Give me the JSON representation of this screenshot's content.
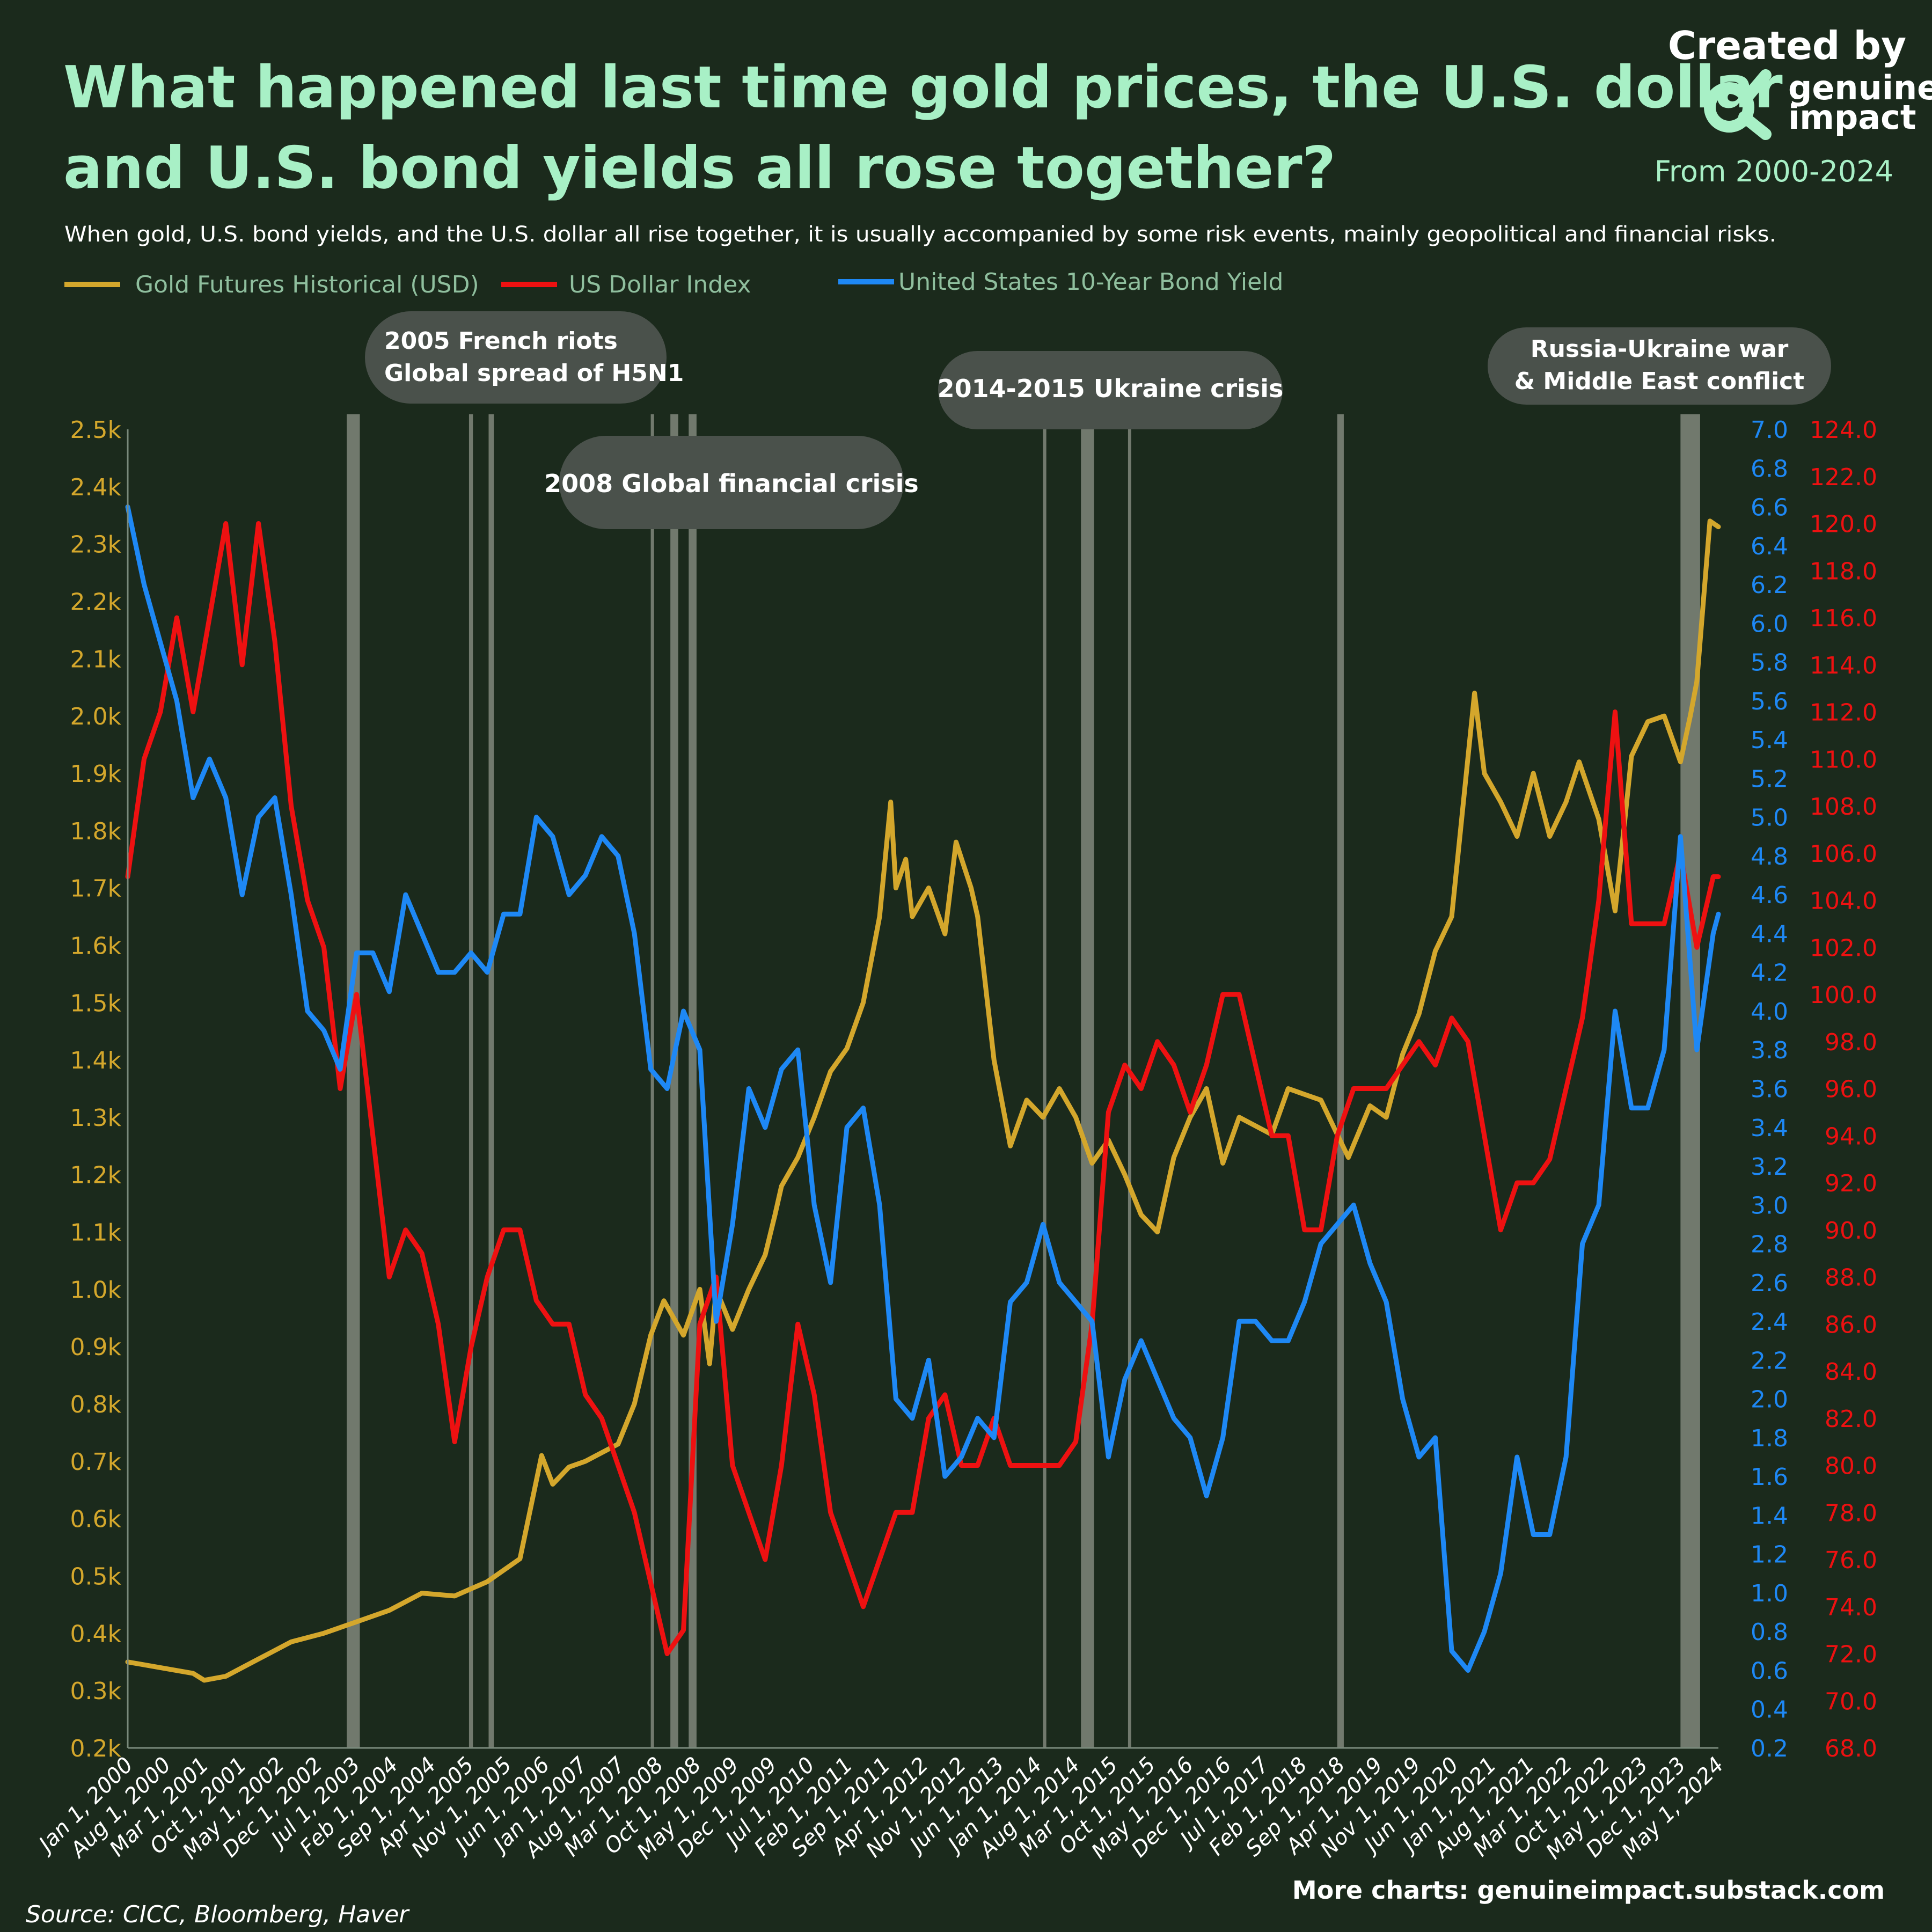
{
  "header": {
    "title_line1": "What happened last time gold prices, the U.S. dollar",
    "title_line2": "and U.S. bond yields all rose together?",
    "subtitle": "When gold, U.S. bond yields, and the U.S. dollar all rise together, it is usually accompanied by some risk events, mainly geopolitical and financial risks.",
    "date_range": "From 2000-2024"
  },
  "brand": {
    "created_by": "Created by",
    "name_line1": "genuine",
    "name_line2": "impact",
    "logo_icon": "genuine-impact-logo"
  },
  "footer": {
    "source": "Source: CICC, Bloomberg, Haver",
    "more_charts": "More charts: genuineimpact.substack.com"
  },
  "colors": {
    "background": "#1b2a1c",
    "title": "#a8f0c6",
    "gold": "#d4a72c",
    "dollar": "#ee1111",
    "yield": "#1e88f5",
    "band": "#b8bab0",
    "bubble": "#4a514b"
  },
  "chart_data": {
    "type": "line",
    "x_ticks": [
      "Jan 1, 2000",
      "Aug 1, 2000",
      "Mar 1, 2001",
      "Oct 1, 2001",
      "May 1, 2002",
      "Dec 1, 2002",
      "Jul 1, 2003",
      "Feb 1, 2004",
      "Sep 1, 2004",
      "Apr 1, 2005",
      "Nov 1, 2005",
      "Jun 1, 2006",
      "Jan 1, 2007",
      "Aug 1, 2007",
      "Mar 1, 2008",
      "Oct 1, 2008",
      "May 1, 2009",
      "Dec 1, 2009",
      "Jul 1, 2010",
      "Feb 1, 2011",
      "Sep 1, 2011",
      "Apr 1, 2012",
      "Nov 1, 2012",
      "Jun 1, 2013",
      "Jan 1, 2014",
      "Aug 1, 2014",
      "Mar 1, 2015",
      "Oct 1, 2015",
      "May 1, 2016",
      "Dec 1, 2016",
      "Jul 1, 2017",
      "Feb 1, 2018",
      "Sep 1, 2018",
      "Apr 1, 2019",
      "Nov 1, 2019",
      "Jun 1, 2020",
      "Jan 1, 2021",
      "Aug 1, 2021",
      "Mar 1, 2022",
      "Oct 1, 2022",
      "May 1, 2023",
      "Dec 1, 2023",
      "May 1, 2024"
    ],
    "x_range": [
      2000.0,
      2024.33
    ],
    "axes": {
      "gold": {
        "min": 200,
        "max": 2500,
        "ticks": [
          "0.2k",
          "0.3k",
          "0.4k",
          "0.5k",
          "0.6k",
          "0.7k",
          "0.8k",
          "0.9k",
          "1.0k",
          "1.1k",
          "1.2k",
          "1.3k",
          "1.4k",
          "1.5k",
          "1.6k",
          "1.7k",
          "1.8k",
          "1.9k",
          "2.0k",
          "2.1k",
          "2.2k",
          "2.3k",
          "2.4k",
          "2.5k"
        ],
        "side": "left"
      },
      "yield": {
        "min": 0.2,
        "max": 7.0,
        "ticks": [
          "0.2",
          "0.4",
          "0.6",
          "0.8",
          "1.0",
          "1.2",
          "1.4",
          "1.6",
          "1.8",
          "2.0",
          "2.2",
          "2.4",
          "2.6",
          "2.8",
          "3.0",
          "3.2",
          "3.4",
          "3.6",
          "3.8",
          "4.0",
          "4.2",
          "4.4",
          "4.6",
          "4.8",
          "5.0",
          "5.2",
          "5.4",
          "5.6",
          "5.8",
          "6.0",
          "6.2",
          "6.4",
          "6.6",
          "6.8",
          "7.0"
        ],
        "side": "right"
      },
      "dollar": {
        "min": 68,
        "max": 124,
        "ticks": [
          "68.0",
          "70.0",
          "72.0",
          "74.0",
          "76.0",
          "78.0",
          "80.0",
          "82.0",
          "84.0",
          "86.0",
          "88.0",
          "90.0",
          "92.0",
          "94.0",
          "96.0",
          "98.0",
          "100.0",
          "102.0",
          "104.0",
          "106.0",
          "108.0",
          "110.0",
          "112.0",
          "114.0",
          "116.0",
          "118.0",
          "120.0",
          "122.0",
          "124.0"
        ],
        "side": "far-right"
      }
    },
    "series": [
      {
        "name": "Gold Futures Historical (USD)",
        "key": "gold",
        "axis": "gold",
        "x": [
          2000.0,
          2000.5,
          2001.0,
          2001.17,
          2001.5,
          2001.75,
          2002.0,
          2002.5,
          2003.0,
          2003.5,
          2004.0,
          2004.5,
          2005.0,
          2005.5,
          2006.0,
          2006.33,
          2006.5,
          2006.75,
          2007.0,
          2007.5,
          2007.75,
          2008.0,
          2008.2,
          2008.5,
          2008.75,
          2008.9,
          2009.0,
          2009.25,
          2009.5,
          2009.75,
          2009.9,
          2010.0,
          2010.25,
          2010.5,
          2010.75,
          2011.0,
          2011.25,
          2011.5,
          2011.67,
          2011.75,
          2011.9,
          2012.0,
          2012.25,
          2012.5,
          2012.67,
          2012.9,
          2013.0,
          2013.25,
          2013.5,
          2013.75,
          2014.0,
          2014.25,
          2014.5,
          2014.75,
          2015.0,
          2015.25,
          2015.5,
          2015.75,
          2016.0,
          2016.25,
          2016.5,
          2016.75,
          2017.0,
          2017.5,
          2017.75,
          2018.0,
          2018.25,
          2018.5,
          2018.67,
          2019.0,
          2019.25,
          2019.5,
          2019.75,
          2020.0,
          2020.25,
          2020.6,
          2020.75,
          2021.0,
          2021.25,
          2021.5,
          2021.75,
          2022.0,
          2022.2,
          2022.5,
          2022.75,
          2022.9,
          2023.0,
          2023.25,
          2023.5,
          2023.75,
          2023.9,
          2024.0,
          2024.2,
          2024.33
        ],
        "y": [
          350,
          340,
          330,
          318,
          325,
          340,
          355,
          385,
          400,
          420,
          440,
          470,
          465,
          490,
          530,
          710,
          660,
          690,
          700,
          730,
          800,
          920,
          980,
          920,
          1000,
          870,
          1000,
          930,
          1000,
          1060,
          1130,
          1180,
          1230,
          1300,
          1380,
          1420,
          1500,
          1650,
          1850,
          1700,
          1750,
          1650,
          1700,
          1620,
          1780,
          1700,
          1650,
          1400,
          1250,
          1330,
          1300,
          1350,
          1300,
          1220,
          1260,
          1200,
          1130,
          1100,
          1230,
          1300,
          1350,
          1220,
          1300,
          1270,
          1350,
          1340,
          1330,
          1270,
          1230,
          1320,
          1300,
          1410,
          1480,
          1590,
          1650,
          2040,
          1900,
          1850,
          1790,
          1900,
          1790,
          1850,
          1920,
          1820,
          1660,
          1820,
          1930,
          1990,
          2000,
          1920,
          2000,
          2060,
          2340,
          2330
        ]
      },
      {
        "name": "US Dollar Index",
        "key": "dollar",
        "axis": "dollar",
        "x": [
          2000.0,
          2000.25,
          2000.5,
          2000.75,
          2001.0,
          2001.25,
          2001.5,
          2001.75,
          2002.0,
          2002.25,
          2002.5,
          2002.75,
          2003.0,
          2003.25,
          2003.5,
          2003.75,
          2004.0,
          2004.25,
          2004.5,
          2004.75,
          2005.0,
          2005.25,
          2005.5,
          2005.75,
          2006.0,
          2006.25,
          2006.5,
          2006.75,
          2007.0,
          2007.25,
          2007.5,
          2007.75,
          2008.0,
          2008.25,
          2008.5,
          2008.75,
          2009.0,
          2009.25,
          2009.5,
          2009.75,
          2010.0,
          2010.25,
          2010.5,
          2010.75,
          2011.0,
          2011.25,
          2011.5,
          2011.75,
          2012.0,
          2012.25,
          2012.5,
          2012.75,
          2013.0,
          2013.25,
          2013.5,
          2013.75,
          2014.0,
          2014.25,
          2014.5,
          2014.75,
          2015.0,
          2015.25,
          2015.5,
          2015.75,
          2016.0,
          2016.25,
          2016.5,
          2016.75,
          2017.0,
          2017.25,
          2017.5,
          2017.75,
          2018.0,
          2018.25,
          2018.5,
          2018.75,
          2019.0,
          2019.25,
          2019.5,
          2019.75,
          2020.0,
          2020.25,
          2020.5,
          2020.75,
          2021.0,
          2021.25,
          2021.5,
          2021.75,
          2022.0,
          2022.25,
          2022.5,
          2022.75,
          2023.0,
          2023.25,
          2023.5,
          2023.75,
          2024.0,
          2024.25,
          2024.33
        ],
        "y": [
          105,
          110,
          112,
          116,
          112,
          116,
          120,
          114,
          120,
          115,
          108,
          104,
          102,
          96,
          100,
          94,
          88,
          90,
          89,
          86,
          81,
          85,
          88,
          90,
          90,
          87,
          86,
          86,
          83,
          82,
          80,
          78,
          75,
          72,
          73,
          86,
          88,
          80,
          78,
          76,
          80,
          86,
          83,
          78,
          76,
          74,
          76,
          78,
          78,
          82,
          83,
          80,
          80,
          82,
          80,
          80,
          80,
          80,
          81,
          86,
          95,
          97,
          96,
          98,
          97,
          95,
          97,
          100,
          100,
          97,
          94,
          94,
          90,
          90,
          94,
          96,
          96,
          96,
          97,
          98,
          97,
          99,
          98,
          94,
          90,
          92,
          92,
          93,
          96,
          99,
          104,
          112,
          103,
          103,
          103,
          106,
          102,
          105,
          105
        ]
      },
      {
        "name": "United States 10-Year Bond Yield",
        "key": "yield",
        "axis": "yield",
        "x": [
          2000.0,
          2000.25,
          2000.5,
          2000.75,
          2001.0,
          2001.25,
          2001.5,
          2001.75,
          2002.0,
          2002.25,
          2002.5,
          2002.75,
          2003.0,
          2003.25,
          2003.5,
          2003.75,
          2004.0,
          2004.25,
          2004.5,
          2004.75,
          2005.0,
          2005.25,
          2005.5,
          2005.75,
          2006.0,
          2006.25,
          2006.5,
          2006.75,
          2007.0,
          2007.25,
          2007.5,
          2007.75,
          2008.0,
          2008.25,
          2008.5,
          2008.75,
          2009.0,
          2009.25,
          2009.5,
          2009.75,
          2010.0,
          2010.25,
          2010.5,
          2010.75,
          2011.0,
          2011.25,
          2011.5,
          2011.75,
          2012.0,
          2012.25,
          2012.5,
          2012.75,
          2013.0,
          2013.25,
          2013.5,
          2013.75,
          2014.0,
          2014.25,
          2014.5,
          2014.75,
          2015.0,
          2015.25,
          2015.5,
          2015.75,
          2016.0,
          2016.25,
          2016.5,
          2016.75,
          2017.0,
          2017.25,
          2017.5,
          2017.75,
          2018.0,
          2018.25,
          2018.5,
          2018.75,
          2019.0,
          2019.25,
          2019.5,
          2019.75,
          2020.0,
          2020.25,
          2020.5,
          2020.75,
          2021.0,
          2021.25,
          2021.5,
          2021.75,
          2022.0,
          2022.25,
          2022.5,
          2022.75,
          2023.0,
          2023.25,
          2023.5,
          2023.75,
          2024.0,
          2024.25,
          2024.33
        ],
        "y": [
          6.6,
          6.2,
          5.9,
          5.6,
          5.1,
          5.3,
          5.1,
          4.6,
          5.0,
          5.1,
          4.6,
          4.0,
          3.9,
          3.7,
          4.3,
          4.3,
          4.1,
          4.6,
          4.4,
          4.2,
          4.2,
          4.3,
          4.2,
          4.5,
          4.5,
          5.0,
          4.9,
          4.6,
          4.7,
          4.9,
          4.8,
          4.4,
          3.7,
          3.6,
          4.0,
          3.8,
          2.4,
          2.9,
          3.6,
          3.4,
          3.7,
          3.8,
          3.0,
          2.6,
          3.4,
          3.5,
          3.0,
          2.0,
          1.9,
          2.2,
          1.6,
          1.7,
          1.9,
          1.8,
          2.5,
          2.6,
          2.9,
          2.6,
          2.5,
          2.4,
          1.7,
          2.1,
          2.3,
          2.1,
          1.9,
          1.8,
          1.5,
          1.8,
          2.4,
          2.4,
          2.3,
          2.3,
          2.5,
          2.8,
          2.9,
          3.0,
          2.7,
          2.5,
          2.0,
          1.7,
          1.8,
          0.7,
          0.6,
          0.8,
          1.1,
          1.7,
          1.3,
          1.3,
          1.7,
          2.8,
          3.0,
          4.0,
          3.5,
          3.5,
          3.8,
          4.9,
          3.8,
          4.4,
          4.5
        ]
      }
    ],
    "event_bands": [
      {
        "start": 2003.35,
        "end": 2003.55
      },
      {
        "start": 2005.22,
        "end": 2005.28
      },
      {
        "start": 2005.52,
        "end": 2005.6
      },
      {
        "start": 2008.0,
        "end": 2008.05
      },
      {
        "start": 2008.3,
        "end": 2008.42
      },
      {
        "start": 2008.58,
        "end": 2008.7
      },
      {
        "start": 2014.0,
        "end": 2014.05
      },
      {
        "start": 2014.58,
        "end": 2014.78
      },
      {
        "start": 2015.3,
        "end": 2015.34
      },
      {
        "start": 2018.5,
        "end": 2018.6
      },
      {
        "start": 2023.75,
        "end": 2024.05
      }
    ],
    "annotations": [
      {
        "line1": "2005 French riots",
        "line2": "Global spread of H5N1"
      },
      {
        "line1": "2008 Global financial crisis",
        "line2": ""
      },
      {
        "line1": "2014-2015 Ukraine crisis",
        "line2": ""
      },
      {
        "line1": "Russia-Ukraine war",
        "line2": "& Middle East conflict"
      }
    ],
    "legend": {
      "placement": "top-left"
    },
    "grid": false
  }
}
